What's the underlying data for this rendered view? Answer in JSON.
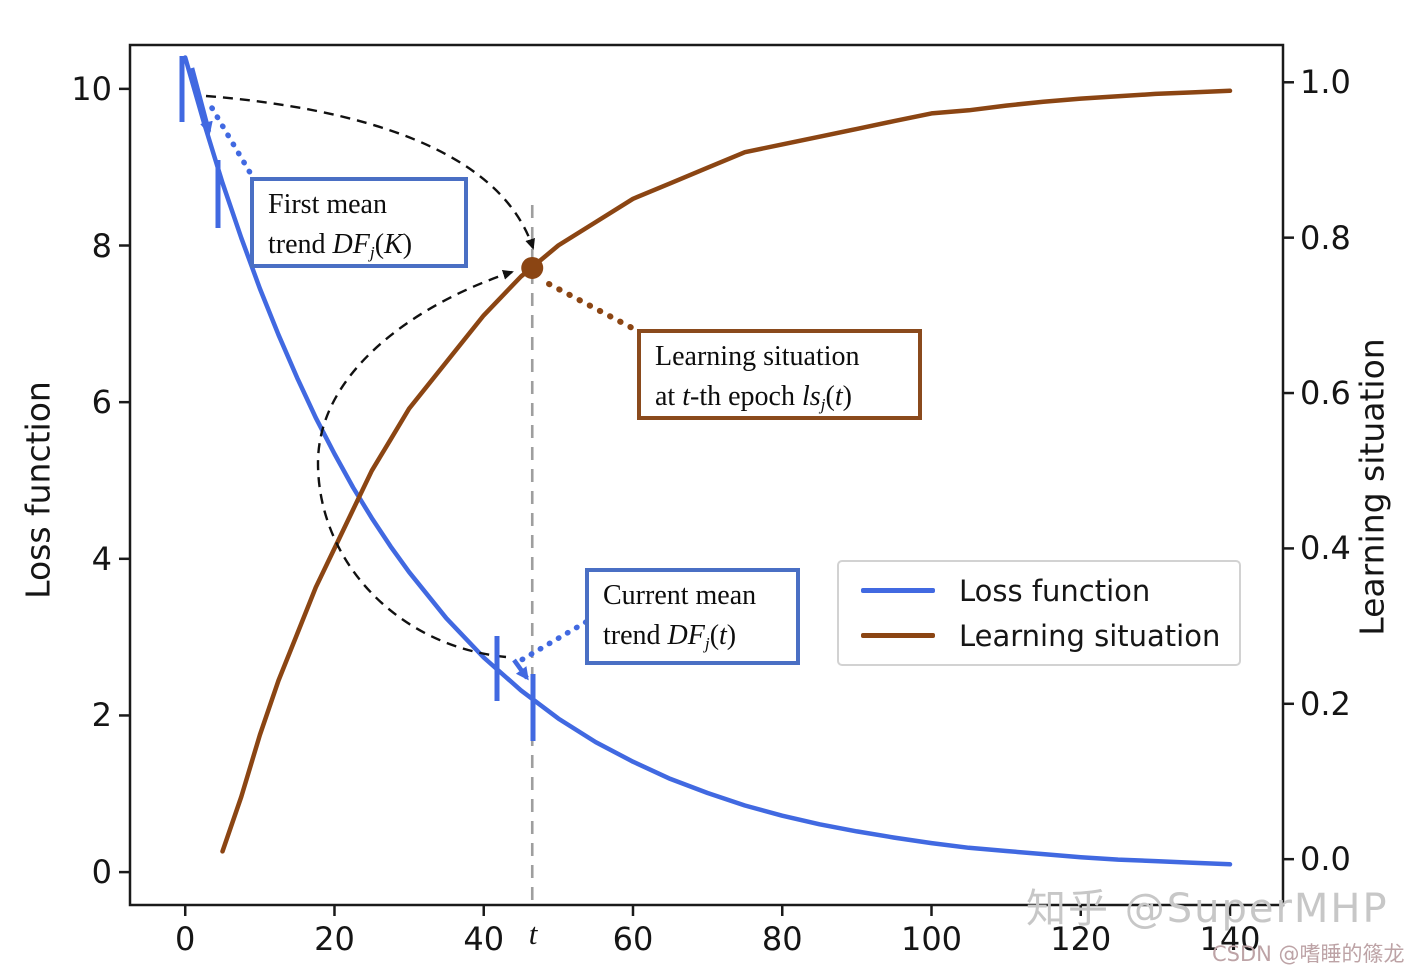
{
  "axes": {
    "left_label": "Loss function",
    "right_label": "Learning situation",
    "x_tick_labels": [
      "0",
      "20",
      "40",
      "60",
      "80",
      "100",
      "120",
      "140"
    ],
    "x_tick_values": [
      0,
      20,
      40,
      60,
      80,
      100,
      120,
      140
    ],
    "y_left_tick_labels": [
      "10",
      "8",
      "6",
      "4",
      "2",
      "0"
    ],
    "y_left_tick_values": [
      10,
      8,
      6,
      4,
      2,
      0
    ],
    "y_right_tick_labels": [
      "1.0",
      "0.8",
      "0.6",
      "0.4",
      "0.2",
      "0.0"
    ],
    "y_right_tick_values": [
      1.0,
      0.8,
      0.6,
      0.4,
      0.2,
      0.0
    ]
  },
  "legend": {
    "items": [
      {
        "label": "Loss function",
        "color": "#4169E1"
      },
      {
        "label": "Learning situation",
        "color": "#8B4513"
      }
    ]
  },
  "annotations": {
    "first_mean": {
      "border_color": "#4a6fc4",
      "lines": [
        [
          {
            "t": "First mean"
          }
        ],
        [
          {
            "t": "trend "
          },
          {
            "t": "DF",
            "s": "cal"
          },
          {
            "t": "j",
            "s": "sub"
          },
          {
            "t": "("
          },
          {
            "t": "K",
            "s": "it"
          },
          {
            "t": ")"
          }
        ]
      ]
    },
    "current_mean": {
      "border_color": "#4a6fc4",
      "lines": [
        [
          {
            "t": "Current mean"
          }
        ],
        [
          {
            "t": "trend "
          },
          {
            "t": "DF",
            "s": "cal"
          },
          {
            "t": "j",
            "s": "sub"
          },
          {
            "t": "("
          },
          {
            "t": "t",
            "s": "it"
          },
          {
            "t": ")"
          }
        ]
      ]
    },
    "learning_situation": {
      "border_color": "#8a4a1c",
      "lines": [
        [
          {
            "t": "Learning situation"
          }
        ],
        [
          {
            "t": "at "
          },
          {
            "t": "t",
            "s": "it"
          },
          {
            "t": "-th epoch "
          },
          {
            "t": "ls",
            "s": "cal"
          },
          {
            "t": "j",
            "s": "sub"
          },
          {
            "t": "("
          },
          {
            "t": "t",
            "s": "it"
          },
          {
            "t": ")"
          }
        ]
      ]
    }
  },
  "watermarks": {
    "zhihu": "知乎 @SuperMHP",
    "csdn": "CSDN @嗜睡的篠龙"
  },
  "chart_data": {
    "type": "line",
    "title": "",
    "xlabel": "",
    "ylabel_left": "Loss function",
    "ylabel_right": "Learning situation",
    "x_range": [
      -7.4,
      147.1
    ],
    "y_left_range": [
      -0.42,
      10.56
    ],
    "y_right_range": [
      -0.059,
      1.048
    ],
    "grid": false,
    "legend_position": "center right",
    "series": [
      {
        "name": "Loss function",
        "axis": "left",
        "color": "#4169E1",
        "x": [
          0,
          2.5,
          5,
          7.5,
          10,
          12.5,
          15,
          17.5,
          20,
          22.5,
          25,
          27.5,
          30,
          35,
          40,
          45,
          50,
          55,
          60,
          65,
          70,
          75,
          80,
          85,
          90,
          95,
          100,
          105,
          110,
          115,
          120,
          125,
          130,
          135,
          140
        ],
        "y": [
          10.4,
          9.57,
          8.8,
          8.1,
          7.45,
          6.86,
          6.31,
          5.8,
          5.34,
          4.91,
          4.52,
          4.16,
          3.83,
          3.24,
          2.74,
          2.32,
          1.96,
          1.66,
          1.41,
          1.19,
          1.01,
          0.85,
          0.72,
          0.61,
          0.52,
          0.44,
          0.37,
          0.31,
          0.27,
          0.23,
          0.19,
          0.16,
          0.14,
          0.12,
          0.1
        ]
      },
      {
        "name": "Learning situation",
        "axis": "right",
        "color": "#8B4513",
        "x": [
          5,
          7.5,
          10,
          12.5,
          15,
          17.5,
          20,
          22.5,
          25,
          27.5,
          30,
          35,
          40,
          45,
          50,
          55,
          60,
          65,
          70,
          75,
          80,
          85,
          90,
          95,
          100,
          105,
          110,
          115,
          120,
          125,
          130,
          135,
          140
        ],
        "y": [
          0.01,
          0.08,
          0.16,
          0.23,
          0.29,
          0.35,
          0.4,
          0.45,
          0.5,
          0.54,
          0.58,
          0.64,
          0.7,
          0.75,
          0.79,
          0.82,
          0.85,
          0.87,
          0.89,
          0.91,
          0.92,
          0.93,
          0.94,
          0.95,
          0.96,
          0.964,
          0.97,
          0.975,
          0.979,
          0.982,
          0.985,
          0.987,
          0.989
        ]
      }
    ],
    "marker_point": {
      "x": 46.5,
      "y": 0.761,
      "axis": "right",
      "color": "#8B4513"
    },
    "vline": {
      "x": 46.5,
      "label": "t",
      "color": "#9e9e9e",
      "style": "dashed"
    }
  }
}
